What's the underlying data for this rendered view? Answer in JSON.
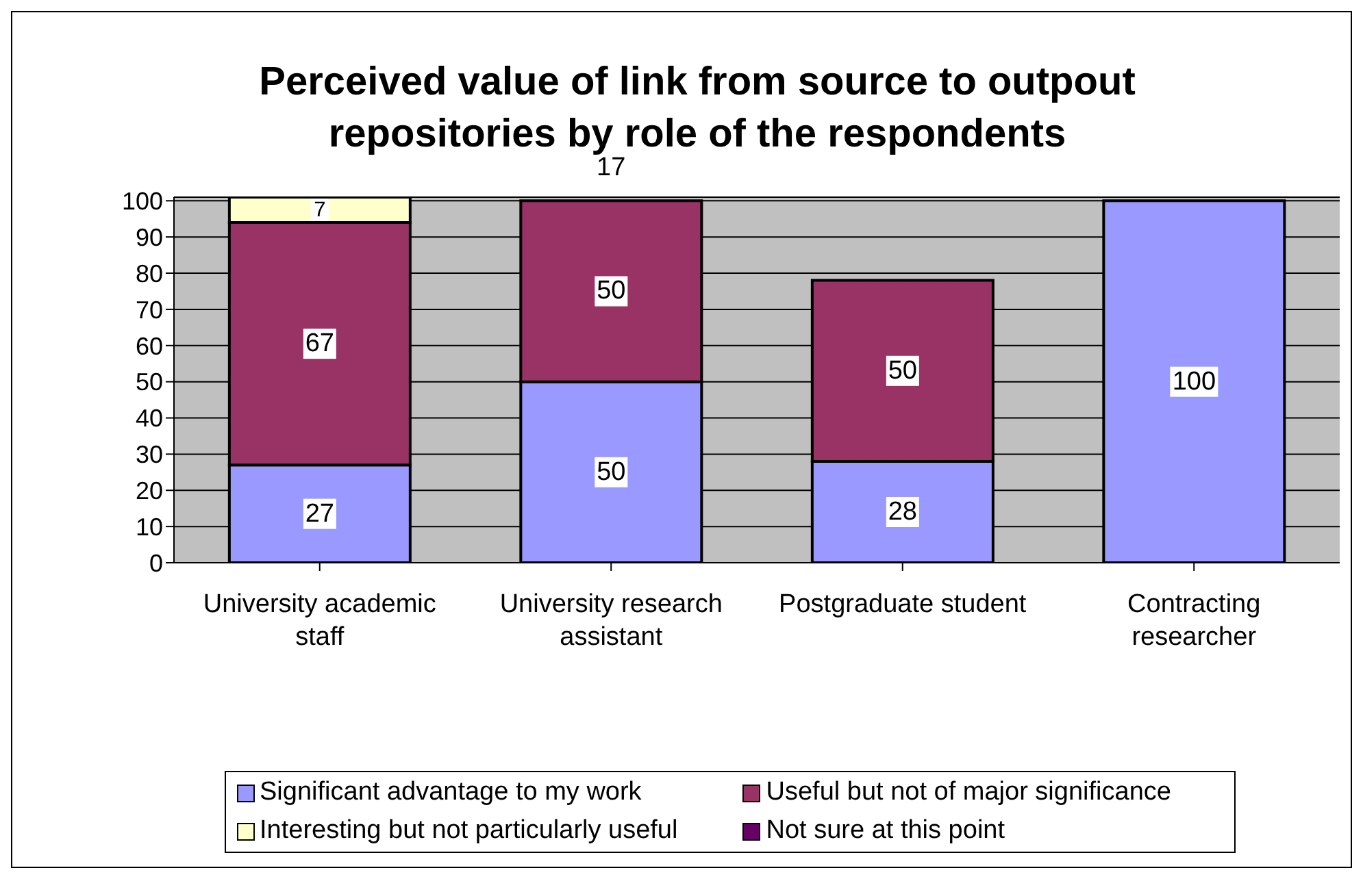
{
  "chart_data": {
    "type": "bar",
    "stacked": true,
    "title": "Perceived value of link from source to outpout repositories by role of the respondents",
    "categories": [
      "University academic staff",
      "University research assistant",
      "Postgraduate student",
      "Contracting researcher"
    ],
    "series": [
      {
        "name": "Significant advantage to my work",
        "color": "#9999ff",
        "values": [
          27,
          50,
          28,
          100
        ]
      },
      {
        "name": "Useful but not of major significance",
        "color": "#993366",
        "values": [
          67,
          50,
          50,
          null
        ]
      },
      {
        "name": "Interesting but not particularly useful",
        "color": "#ffffcc",
        "values": [
          7,
          null,
          null,
          null
        ]
      },
      {
        "name": "Not sure at this point",
        "color": "#660066",
        "values": [
          null,
          null,
          null,
          null
        ]
      }
    ],
    "annotations": [
      "17"
    ],
    "ylim": [
      0,
      101
    ],
    "yticks": [
      0,
      10,
      20,
      30,
      40,
      50,
      60,
      70,
      80,
      90,
      100
    ],
    "grid": "y",
    "legend": "bottom",
    "data_labels": true
  }
}
